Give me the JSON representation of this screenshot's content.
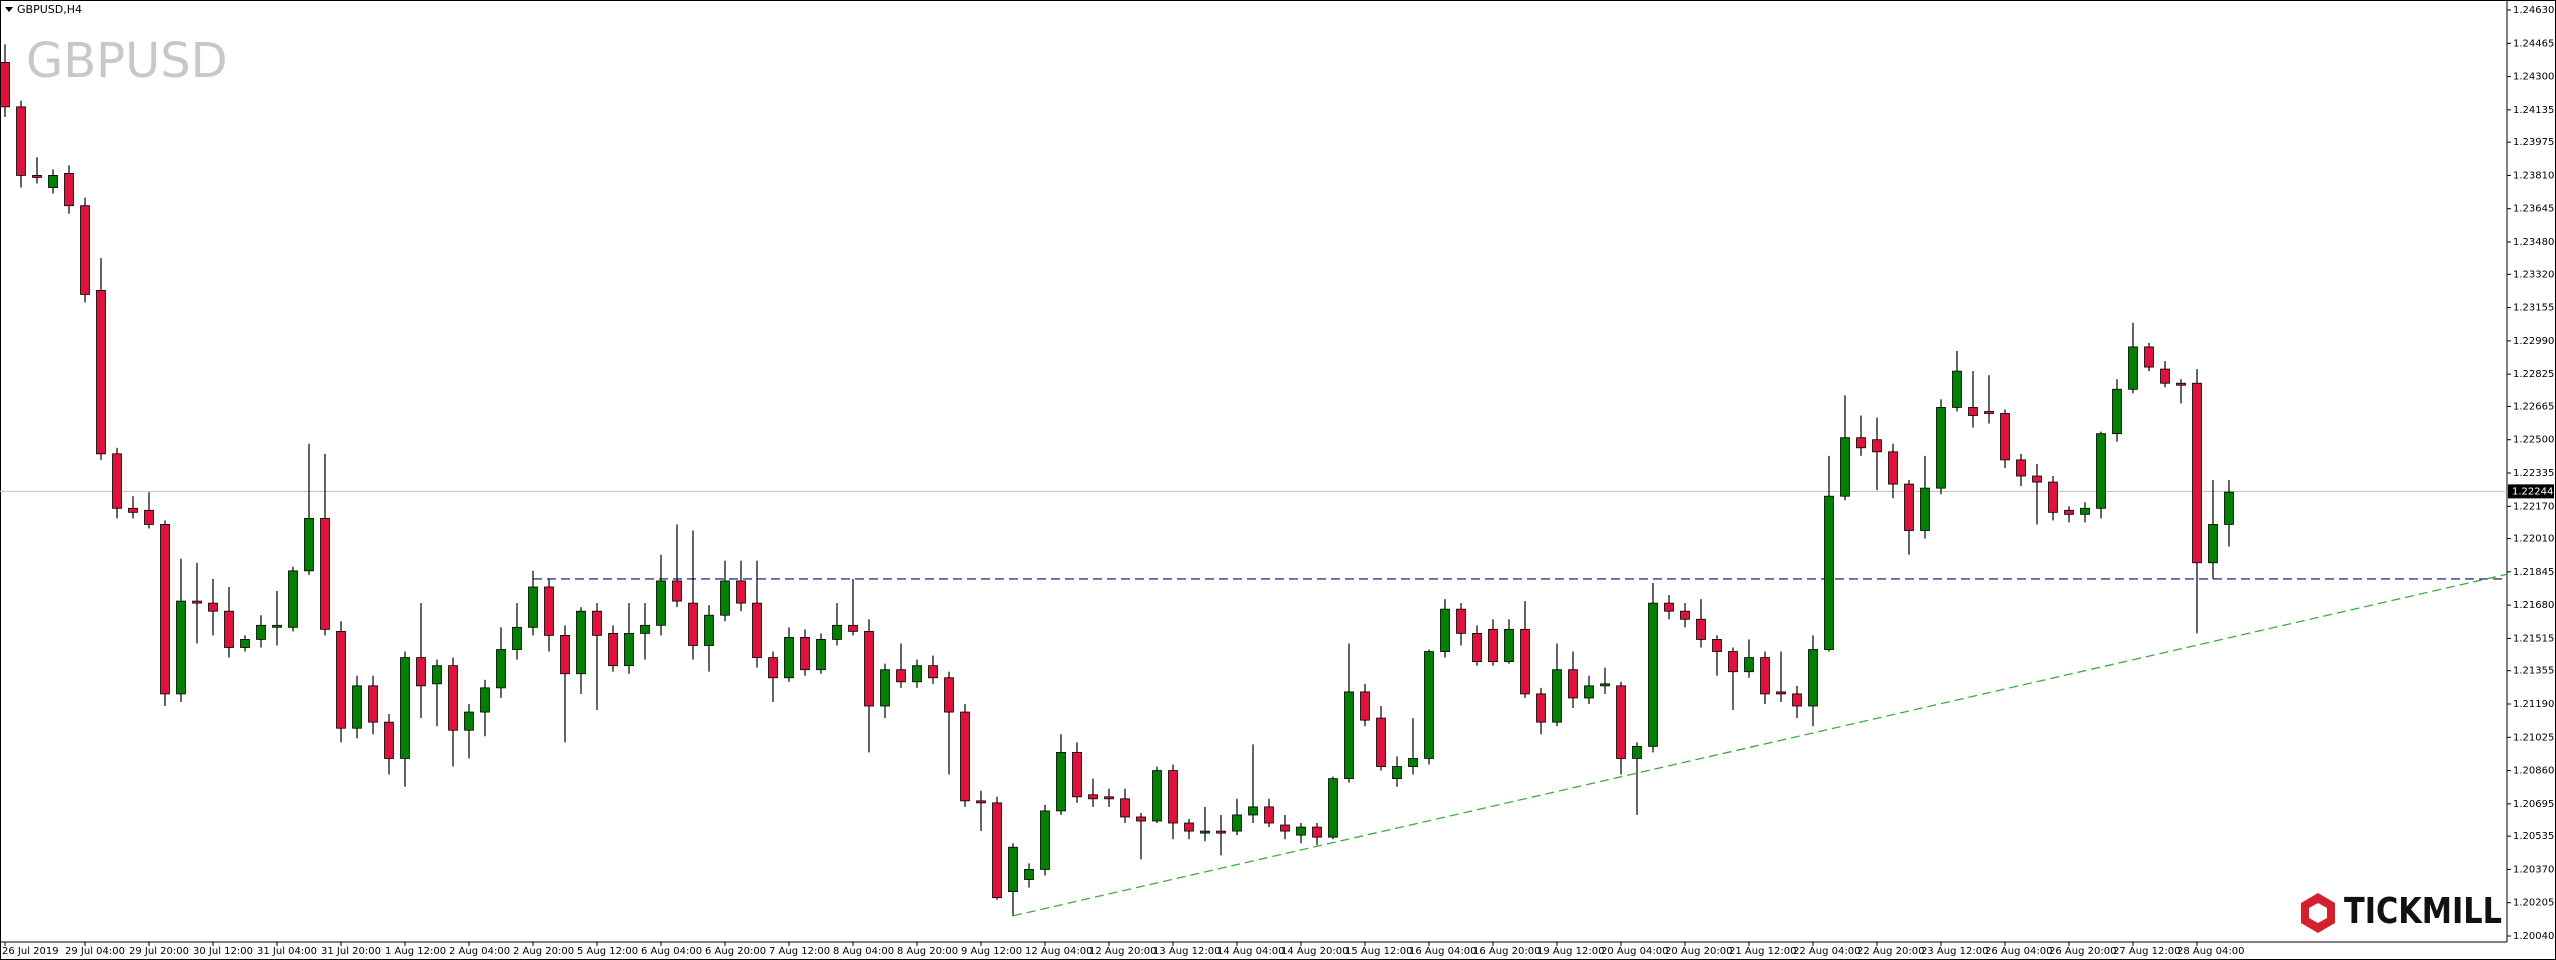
{
  "chart_data": {
    "type": "candlestick",
    "title": "GBPUSD,H4",
    "watermark": "GBPUSD",
    "brand": "TICKMILL",
    "categories": [
      "26 Jul 2019",
      null,
      null,
      null,
      null,
      "29 Jul 04:00",
      null,
      null,
      null,
      "29 Jul 20:00",
      null,
      null,
      null,
      "30 Jul 12:00",
      null,
      null,
      null,
      "31 Jul 04:00",
      null,
      null,
      null,
      "31 Jul 20:00",
      null,
      null,
      null,
      "1 Aug 12:00",
      null,
      null,
      null,
      "2 Aug 04:00",
      null,
      null,
      null,
      "2 Aug 20:00",
      null,
      null,
      null,
      "5 Aug 12:00",
      null,
      null,
      null,
      "6 Aug 04:00",
      null,
      null,
      null,
      "6 Aug 20:00",
      null,
      null,
      null,
      "7 Aug 12:00",
      null,
      null,
      null,
      "8 Aug 04:00",
      null,
      null,
      null,
      "8 Aug 20:00",
      null,
      null,
      null,
      "9 Aug 12:00",
      null,
      null,
      null,
      "12 Aug 04:00",
      null,
      null,
      null,
      "12 Aug 20:00",
      null,
      null,
      null,
      "13 Aug 12:00",
      null,
      null,
      null,
      "14 Aug 04:00",
      null,
      null,
      null,
      "14 Aug 20:00",
      null,
      null,
      null,
      "15 Aug 12:00",
      null,
      null,
      null,
      "16 Aug 04:00",
      null,
      null,
      null,
      "16 Aug 20:00",
      null,
      null,
      null,
      "19 Aug 12:00",
      null,
      null,
      null,
      "20 Aug 04:00",
      null,
      null,
      null,
      "20 Aug 20:00",
      null,
      null,
      null,
      "21 Aug 12:00",
      null,
      null,
      null,
      "22 Aug 04:00",
      null,
      null,
      null,
      "22 Aug 20:00",
      null,
      null,
      null,
      "23 Aug 12:00",
      null,
      null,
      null,
      "26 Aug 04:00",
      null,
      null,
      null,
      "26 Aug 20:00",
      null,
      null,
      null,
      "27 Aug 12:00",
      null,
      null,
      null,
      "28 Aug 04:00",
      null,
      null
    ],
    "open": [
      1.2437,
      1.2415,
      1.2381,
      1.2375,
      1.2382,
      1.2366,
      1.2324,
      1.2243,
      1.2216,
      1.2215,
      1.2208,
      1.2124,
      1.217,
      1.2169,
      1.2165,
      1.2147,
      1.2151,
      1.2157,
      1.2157,
      1.2185,
      1.2211,
      1.2155,
      1.2107,
      1.2128,
      1.211,
      1.2092,
      1.2142,
      1.2129,
      1.2138,
      1.2106,
      1.2115,
      1.2127,
      1.2146,
      1.2157,
      1.2177,
      1.2153,
      1.2134,
      1.2165,
      1.2154,
      1.2138,
      1.2154,
      1.2158,
      1.218,
      1.2169,
      1.2148,
      1.2163,
      1.218,
      1.2169,
      1.2142,
      1.2132,
      1.2152,
      1.2136,
      1.2151,
      1.2158,
      1.2155,
      1.2118,
      1.2136,
      1.213,
      1.2138,
      1.2132,
      1.2115,
      1.2071,
      1.207,
      1.2026,
      1.2032,
      1.2037,
      1.2066,
      1.2095,
      1.2074,
      1.2073,
      1.2072,
      1.2063,
      1.2061,
      1.2086,
      1.206,
      1.2055,
      1.2056,
      1.2056,
      1.2064,
      1.2068,
      1.2059,
      1.2054,
      1.2058,
      1.2053,
      1.2082,
      1.2125,
      1.2112,
      1.2082,
      1.2088,
      1.2092,
      1.2145,
      1.2166,
      1.2154,
      1.2156,
      1.214,
      1.2156,
      1.2124,
      1.211,
      1.2136,
      1.2122,
      1.2128,
      1.2128,
      1.2092,
      1.2098,
      1.2169,
      1.2165,
      1.2161,
      1.2151,
      1.2145,
      1.2135,
      1.2142,
      1.2125,
      1.2124,
      1.2118,
      1.2146,
      1.2222,
      1.2251,
      1.225,
      1.2244,
      1.2228,
      1.2205,
      1.2226,
      1.2266,
      1.2266,
      1.2264,
      1.2263,
      1.224,
      1.2232,
      1.2229,
      1.2215,
      1.2213,
      1.2216,
      1.2253,
      1.2275,
      1.2296,
      1.2285,
      1.2278,
      1.2278,
      1.2189,
      1.2208
    ],
    "high": [
      1.2446,
      1.2418,
      1.239,
      1.2384,
      1.2386,
      1.237,
      1.234,
      1.2246,
      1.2222,
      1.2224,
      1.221,
      1.2191,
      1.2189,
      1.2181,
      1.2177,
      1.2153,
      1.2163,
      1.2175,
      1.2187,
      1.2248,
      1.2243,
      1.216,
      1.2133,
      1.2133,
      1.2114,
      1.2145,
      1.2169,
      1.2141,
      1.2142,
      1.2119,
      1.2131,
      1.2157,
      1.2169,
      1.2185,
      1.2181,
      1.2158,
      1.2167,
      1.2169,
      1.2158,
      1.2169,
      1.2169,
      1.2193,
      1.2208,
      1.2205,
      1.2168,
      1.219,
      1.219,
      1.219,
      1.2145,
      1.2157,
      1.2156,
      1.2154,
      1.2169,
      1.2181,
      1.2161,
      1.2139,
      1.2149,
      1.2141,
      1.2143,
      1.2135,
      1.2119,
      1.2076,
      1.2073,
      1.205,
      1.204,
      1.2069,
      1.2104,
      1.21,
      1.2082,
      1.2077,
      1.2077,
      1.2065,
      1.2088,
      1.2089,
      1.2062,
      1.2068,
      1.2064,
      1.2072,
      1.2099,
      1.2072,
      1.2064,
      1.206,
      1.206,
      1.2083,
      1.2149,
      1.2129,
      1.2118,
      1.2093,
      1.2112,
      1.2146,
      1.2171,
      1.2169,
      1.2158,
      1.2161,
      1.2161,
      1.217,
      1.2127,
      1.2149,
      1.2145,
      1.2133,
      1.2137,
      1.213,
      1.21,
      1.2179,
      1.2173,
      1.2169,
      1.2171,
      1.2153,
      1.2147,
      1.2151,
      1.2145,
      1.2145,
      1.2128,
      1.2153,
      1.2242,
      1.2272,
      1.2262,
      1.2261,
      1.2248,
      1.223,
      1.2242,
      1.227,
      1.2294,
      1.2284,
      1.2282,
      1.2265,
      1.2243,
      1.2238,
      1.2232,
      1.2217,
      1.2219,
      1.2254,
      1.228,
      1.2308,
      1.2298,
      1.2289,
      1.228,
      1.2285,
      1.223,
      1.223
    ],
    "low": [
      1.241,
      1.2375,
      1.2377,
      1.2372,
      1.2362,
      1.2318,
      1.224,
      1.2211,
      1.2211,
      1.2206,
      1.2118,
      1.212,
      1.2149,
      1.2153,
      1.2142,
      1.2145,
      1.2147,
      1.2148,
      1.2155,
      1.2183,
      1.2153,
      1.21,
      1.2102,
      1.2104,
      1.2084,
      1.2078,
      1.2112,
      1.2108,
      1.2088,
      1.2092,
      1.2103,
      1.2122,
      1.2141,
      1.2153,
      1.2145,
      1.21,
      1.2124,
      1.2116,
      1.2135,
      1.2134,
      1.2141,
      1.2153,
      1.2167,
      1.2141,
      1.2135,
      1.216,
      1.2165,
      1.2137,
      1.212,
      1.213,
      1.2133,
      1.2134,
      1.2148,
      1.2153,
      1.2095,
      1.2112,
      1.2127,
      1.2127,
      1.2129,
      1.2084,
      1.2068,
      1.2056,
      1.2022,
      1.2014,
      1.2028,
      1.2034,
      1.2064,
      1.207,
      1.2068,
      1.2068,
      1.206,
      1.2042,
      1.206,
      1.2052,
      1.2052,
      1.2051,
      1.2044,
      1.2054,
      1.206,
      1.2058,
      1.2052,
      1.205,
      1.2049,
      1.2052,
      1.208,
      1.2108,
      1.2086,
      1.2078,
      1.2084,
      1.2089,
      1.2142,
      1.2148,
      1.2138,
      1.2138,
      1.2139,
      1.2122,
      1.2104,
      1.2108,
      1.2117,
      1.2119,
      1.2124,
      1.2084,
      1.2064,
      1.2095,
      1.2161,
      1.2157,
      1.2147,
      1.2133,
      1.2116,
      1.2132,
      1.2119,
      1.212,
      1.2112,
      1.2108,
      1.2145,
      1.222,
      1.2242,
      1.2225,
      1.2221,
      1.2193,
      1.2201,
      1.2223,
      1.2264,
      1.2256,
      1.2258,
      1.2236,
      1.2227,
      1.2208,
      1.221,
      1.2209,
      1.2209,
      1.2211,
      1.2249,
      1.2273,
      1.2284,
      1.2276,
      1.2268,
      1.2154,
      1.2181,
      1.2197
    ],
    "close": [
      1.2415,
      1.2381,
      1.238,
      1.2381,
      1.2366,
      1.2322,
      1.2243,
      1.2216,
      1.2214,
      1.2208,
      1.2124,
      1.217,
      1.2169,
      1.2165,
      1.2147,
      1.2151,
      1.2158,
      1.2158,
      1.2185,
      1.2211,
      1.2156,
      1.2107,
      1.2128,
      1.211,
      1.2092,
      1.2142,
      1.2128,
      1.2138,
      1.2106,
      1.2115,
      1.2127,
      1.2146,
      1.2157,
      1.2177,
      1.2153,
      1.2134,
      1.2165,
      1.2153,
      1.2138,
      1.2154,
      1.2158,
      1.218,
      1.217,
      1.2148,
      1.2163,
      1.218,
      1.2169,
      1.2142,
      1.2132,
      1.2152,
      1.2136,
      1.2151,
      1.2158,
      1.2155,
      1.2118,
      1.2136,
      1.213,
      1.2138,
      1.2132,
      1.2115,
      1.2071,
      1.207,
      1.2023,
      1.2048,
      1.2037,
      1.2066,
      1.2095,
      1.2073,
      1.2072,
      1.2072,
      1.2063,
      1.2061,
      1.2086,
      1.206,
      1.2056,
      1.2056,
      1.2055,
      1.2064,
      1.2068,
      1.206,
      1.2056,
      1.2058,
      1.2053,
      1.2082,
      1.2125,
      1.2111,
      1.2088,
      1.2088,
      1.2092,
      1.2145,
      1.2166,
      1.2154,
      1.214,
      1.214,
      1.2156,
      1.2124,
      1.211,
      1.2136,
      1.2122,
      1.2128,
      1.2129,
      1.2092,
      1.2098,
      1.2169,
      1.2165,
      1.2161,
      1.2151,
      1.2145,
      1.2135,
      1.2142,
      1.2124,
      1.2124,
      1.2118,
      1.2146,
      1.2222,
      1.2251,
      1.2246,
      1.2244,
      1.2228,
      1.2205,
      1.2226,
      1.2266,
      1.2284,
      1.2262,
      1.2263,
      1.224,
      1.2232,
      1.2229,
      1.2214,
      1.2213,
      1.2216,
      1.2253,
      1.2275,
      1.2296,
      1.2286,
      1.2278,
      1.2277,
      1.2189,
      1.2208,
      1.2224
    ],
    "up_color": "#008000",
    "down_color": "#dc143c",
    "wick_color": "#000000",
    "ylim": [
      1.2004,
      1.2463
    ],
    "yticks": [
      {
        "value": 1.2463,
        "label": "1.24630"
      },
      1.24465,
      {
        "value": 1.243,
        "label": "1.24300"
      },
      1.24135,
      1.23975,
      {
        "value": 1.2381,
        "label": "1.23810"
      },
      1.23645,
      {
        "value": 1.2348,
        "label": "1.23480"
      },
      {
        "value": 1.2332,
        "label": "1.23320"
      },
      1.23155,
      {
        "value": 1.2299,
        "label": "1.22990"
      },
      1.22825,
      1.22665,
      {
        "value": 1.225,
        "label": "1.22500"
      },
      1.22335,
      {
        "value": 1.2217,
        "label": "1.22170"
      },
      {
        "value": 1.2201,
        "label": "1.22010"
      },
      1.21845,
      {
        "value": 1.2168,
        "label": "1.21680"
      },
      1.21515,
      1.21355,
      {
        "value": 1.2119,
        "label": "1.21190"
      },
      1.21025,
      {
        "value": 1.2086,
        "label": "1.20860"
      },
      1.20695,
      1.20535,
      {
        "value": 1.2037,
        "label": "1.20370"
      },
      1.20205,
      {
        "value": 1.2004,
        "label": "1.20040"
      }
    ],
    "last_price": 1.22244,
    "last_price_color": "#c0c0c0",
    "levels": [
      {
        "value": 1.2181,
        "from": 33,
        "color": "#2e3a87"
      }
    ],
    "trendline": {
      "x": [
        63,
        138
      ],
      "y": [
        1.2014,
        1.215
      ],
      "color": "#3cae3c"
    }
  }
}
